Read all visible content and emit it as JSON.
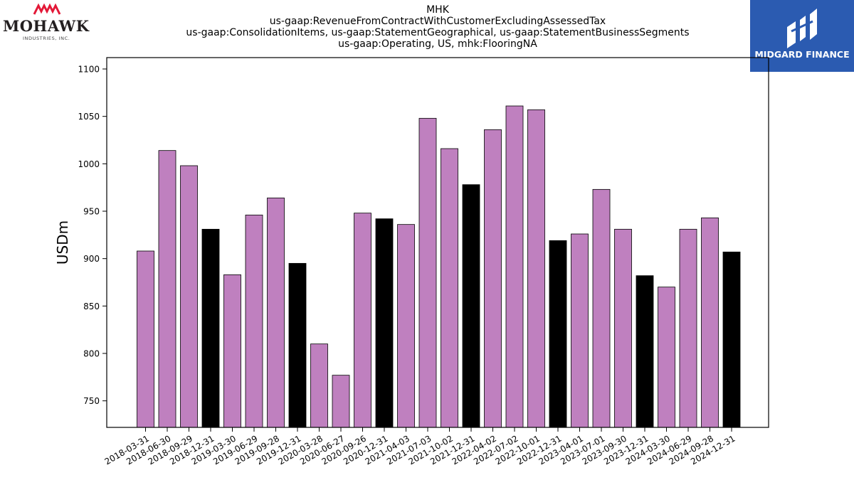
{
  "title_lines": [
    "MHK",
    "us-gaap:RevenueFromContractWithCustomerExcludingAssessedTax",
    "us-gaap:ConsolidationItems, us-gaap:StatementGeographical, us-gaap:StatementBusinessSegments",
    "us-gaap:Operating, US, mhk:FlooringNA"
  ],
  "logos": {
    "left": {
      "word": "MOHAWK",
      "sub": "INDUSTRIES, INC."
    },
    "right": {
      "brand": "MIDGARD FINANCE"
    }
  },
  "colors": {
    "quarter_bar": "#bf80bf",
    "year_end_bar": "#000000",
    "logo_red": "#e31837",
    "logo_blue": "#2b5bb1"
  },
  "chart_data": {
    "type": "bar",
    "ylabel": "USDm",
    "ylim": [
      722,
      1112
    ],
    "yticks": [
      750,
      800,
      850,
      900,
      950,
      1000,
      1050,
      1100
    ],
    "grid": false,
    "categories": [
      "2018-03-31",
      "2018-06-30",
      "2018-09-29",
      "2018-12-31",
      "2019-03-30",
      "2019-06-29",
      "2019-09-28",
      "2019-12-31",
      "2020-03-28",
      "2020-06-27",
      "2020-09-26",
      "2020-12-31",
      "2021-04-03",
      "2021-07-03",
      "2021-10-02",
      "2021-12-31",
      "2022-04-02",
      "2022-07-02",
      "2022-10-01",
      "2022-12-31",
      "2023-04-01",
      "2023-07-01",
      "2023-09-30",
      "2023-12-31",
      "2024-03-30",
      "2024-06-29",
      "2024-09-28",
      "2024-12-31"
    ],
    "values": [
      908,
      1014,
      998,
      931,
      883,
      946,
      964,
      895,
      810,
      777,
      948,
      942,
      936,
      1048,
      1016,
      978,
      1036,
      1061,
      1057,
      919,
      926,
      973,
      931,
      882,
      870,
      931,
      943,
      907
    ],
    "year_end": [
      false,
      false,
      false,
      true,
      false,
      false,
      false,
      true,
      false,
      false,
      false,
      true,
      false,
      false,
      false,
      true,
      false,
      false,
      false,
      true,
      false,
      false,
      false,
      true,
      false,
      false,
      false,
      true
    ]
  }
}
